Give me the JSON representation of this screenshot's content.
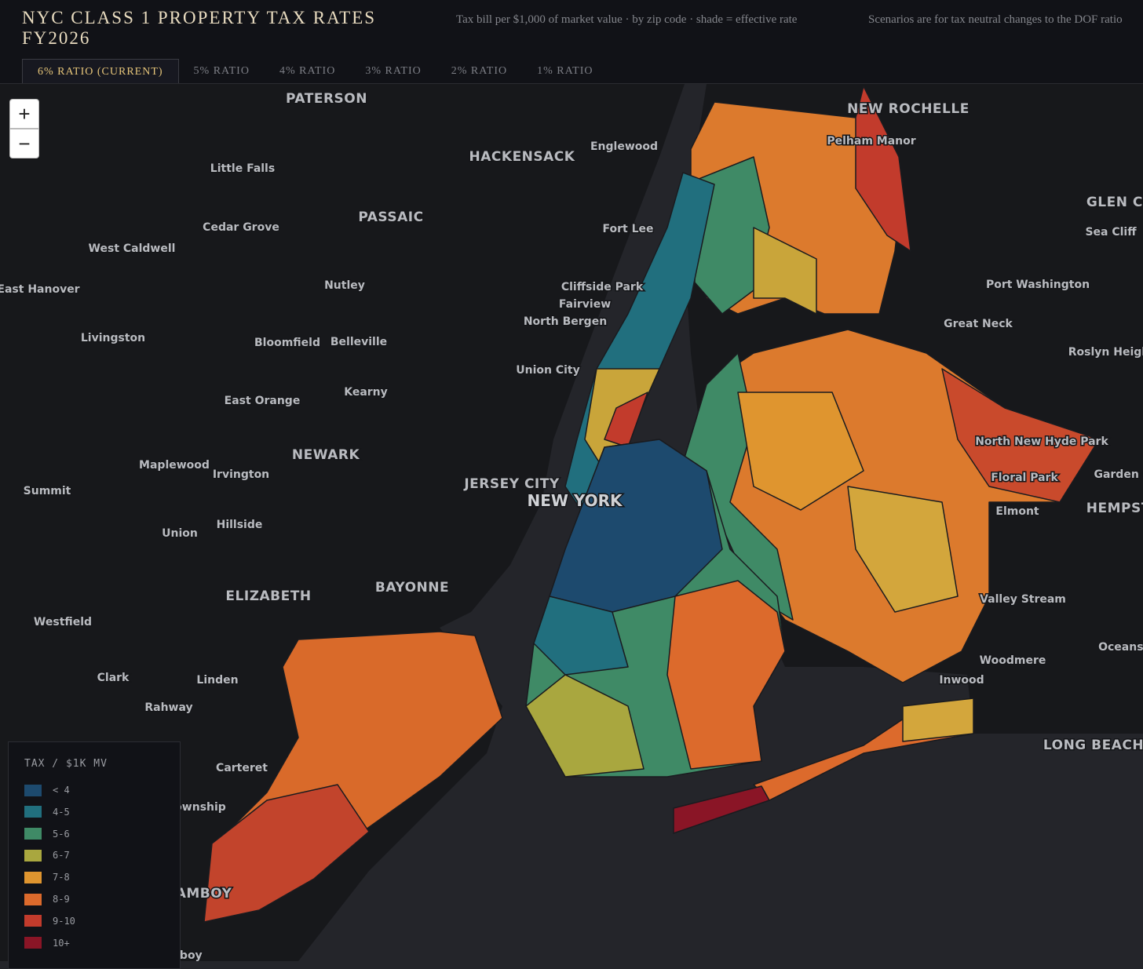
{
  "header": {
    "title": "NYC CLASS 1 PROPERTY TAX RATES FY2026",
    "subtitle": "Tax bill per $1,000 of market value · by zip code · shade = effective rate",
    "note": "Scenarios are for tax neutral changes to the DOF ratio"
  },
  "tabs": [
    "6% RATIO (CURRENT)",
    "5% RATIO",
    "4% RATIO",
    "3% RATIO",
    "2% RATIO",
    "1% RATIO"
  ],
  "selected_tab": 0,
  "zoom": [
    "+",
    "−"
  ],
  "places": [
    "PATERSON",
    "NEW ROCHELLE",
    "Pelham Manor",
    "HACKENSACK",
    "Englewood",
    "Little Falls",
    "PASSAIC",
    "Cedar Grove",
    "Fort Lee",
    "GLEN COVE",
    "Sea Cliff",
    "West Caldwell",
    "Port Washington",
    "East Hanover",
    "Nutley",
    "Cliffside Park",
    "Fairview",
    "North Bergen",
    "Great Neck",
    "Livingston",
    "Bloomfield",
    "Belleville",
    "Roslyn Heights",
    "Union City",
    "Kearny",
    "East Orange",
    "North New Hyde Park",
    "NEWARK",
    "Maplewood",
    "Irvington",
    "Floral Park",
    "Garden City",
    "JERSEY CITY",
    "NEW YORK",
    "Summit",
    "HEMPSTEAD",
    "Elmont",
    "Hillside",
    "Union",
    "BAYONNE",
    "ELIZABETH",
    "Valley Stream",
    "Westfield",
    "Oceanside",
    "Woodmere",
    "Clark",
    "Linden",
    "Inwood",
    "Rahway",
    "LONG BEACH",
    "Carteret",
    "Woodbridge Township",
    "PERTH AMBOY",
    "South Amboy"
  ],
  "legend": {
    "title": "TAX / $1K MV",
    "items": [
      {
        "label": "< 4",
        "color": "#1d4a6e"
      },
      {
        "label": "4-5",
        "color": "#216f7e"
      },
      {
        "label": "5-6",
        "color": "#3f8a66"
      },
      {
        "label": "6-7",
        "color": "#a9a73f"
      },
      {
        "label": "7-8",
        "color": "#df952f"
      },
      {
        "label": "8-9",
        "color": "#dc6a2c"
      },
      {
        "label": "9-10",
        "color": "#c23b2c"
      },
      {
        "label": "10+",
        "color": "#8a1526"
      }
    ]
  }
}
